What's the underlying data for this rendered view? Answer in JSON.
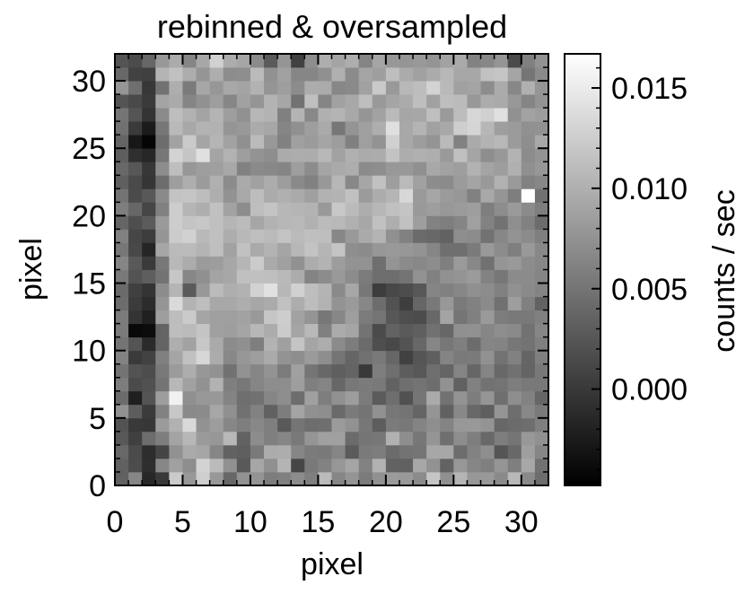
{
  "chart_data": {
    "type": "heatmap",
    "title": "rebinned & oversampled",
    "xlabel": "pixel",
    "ylabel": "pixel",
    "xlim": [
      0,
      32
    ],
    "ylim": [
      0,
      32
    ],
    "grid_size": [
      32,
      32
    ],
    "x_ticks": [
      0,
      5,
      10,
      15,
      20,
      25,
      30
    ],
    "y_ticks": [
      0,
      5,
      10,
      15,
      20,
      25,
      30
    ],
    "x_tick_labels": [
      "0",
      "5",
      "10",
      "15",
      "20",
      "25",
      "30"
    ],
    "y_tick_labels": [
      "0",
      "5",
      "10",
      "15",
      "20",
      "25",
      "30"
    ],
    "grid": false,
    "colormap": "grayscale",
    "colorbar": {
      "label": "counts / sec",
      "placement": "right",
      "range": [
        -0.0048,
        0.0167
      ],
      "ticks": [
        0.0,
        0.005,
        0.01,
        0.015
      ],
      "tick_labels": [
        "0.000",
        "0.005",
        "0.010",
        "0.015"
      ],
      "low_color": "#000000",
      "high_color": "#ffffff"
    },
    "values": [
      [
        0.0034,
        0.0065,
        -0.0015,
        0.0,
        0.0123,
        0.008,
        0.0126,
        0.008,
        0.0039,
        0.0075,
        0.0077,
        0.0057,
        0.006,
        0.007,
        0.0059,
        0.0109,
        0.0065,
        0.0077,
        0.0056,
        0.0074,
        0.0083,
        0.0081,
        0.0069,
        0.0118,
        0.0073,
        0.0105,
        0.0079,
        0.0081,
        0.0068,
        0.0107,
        0.0068,
        0.0044
      ],
      [
        0.0034,
        0.0016,
        -0.0009,
        0.0066,
        0.0087,
        0.0071,
        0.013,
        0.011,
        0.0074,
        0.0027,
        0.0092,
        0.0073,
        0.0104,
        0.0011,
        0.0054,
        0.0062,
        0.0079,
        0.0091,
        0.0062,
        0.0102,
        0.0035,
        0.0033,
        0.0093,
        0.0075,
        0.0035,
        0.0079,
        0.0065,
        0.0059,
        0.0078,
        0.0059,
        0.0094,
        0.0047
      ],
      [
        0.004,
        0.0015,
        -0.001,
        0.001,
        0.0074,
        0.0095,
        0.0092,
        0.0065,
        0.0035,
        0.0032,
        0.0055,
        0.0097,
        0.0098,
        0.0065,
        0.0056,
        0.0054,
        0.0064,
        0.0029,
        0.0055,
        0.0057,
        0.0042,
        0.0049,
        0.0051,
        0.0093,
        0.0093,
        0.0044,
        0.0062,
        0.0072,
        0.0024,
        0.004,
        0.0086,
        0.0065
      ],
      [
        0.0026,
        0.0006,
        0.0044,
        0.0058,
        0.009,
        0.0106,
        0.0082,
        0.0079,
        0.0107,
        0.0035,
        0.0071,
        0.0059,
        0.0065,
        0.0054,
        0.0078,
        0.0087,
        0.0087,
        0.0042,
        0.0051,
        0.0052,
        0.0101,
        0.0072,
        0.0052,
        0.0078,
        0.0046,
        0.0071,
        0.0058,
        0.004,
        0.0058,
        0.0051,
        0.008,
        0.0074
      ],
      [
        0.0022,
        0.0,
        -0.0002,
        0.0083,
        0.0101,
        0.0135,
        0.0075,
        0.0084,
        0.0066,
        0.0058,
        0.0067,
        0.0059,
        0.0027,
        0.0051,
        0.0044,
        0.0046,
        0.0083,
        0.0075,
        0.0052,
        0.003,
        0.0056,
        0.0053,
        0.0063,
        0.0072,
        0.0063,
        0.008,
        0.0081,
        0.0077,
        0.0039,
        0.0042,
        0.0045,
        0.0059
      ],
      [
        0.0074,
        0.003,
        0.0002,
        0.0062,
        0.012,
        0.0068,
        0.0069,
        0.0093,
        0.0073,
        0.0047,
        0.0062,
        0.0034,
        0.0057,
        0.009,
        0.0073,
        0.0072,
        0.0041,
        0.0056,
        0.005,
        0.0074,
        0.0052,
        0.005,
        0.0037,
        0.0078,
        0.0034,
        0.0067,
        0.004,
        0.0032,
        0.0078,
        0.0045,
        0.0067,
        0.0055
      ],
      [
        0.0042,
        -0.0022,
        0.0023,
        0.0085,
        0.0155,
        0.0073,
        0.008,
        0.008,
        0.0063,
        0.0046,
        0.0047,
        0.0065,
        0.0071,
        0.0044,
        0.0087,
        0.0058,
        0.0074,
        0.0084,
        0.0056,
        0.0029,
        0.0045,
        0.002,
        0.0051,
        0.0095,
        0.0048,
        0.0076,
        0.0057,
        0.0078,
        0.0046,
        0.0072,
        0.0062,
        0.0038
      ],
      [
        0.0057,
        0.0015,
        0.002,
        0.005,
        0.0107,
        0.0088,
        0.0075,
        0.0102,
        0.0059,
        0.0053,
        0.0064,
        0.0071,
        0.0071,
        0.0085,
        0.0059,
        0.0064,
        0.0039,
        0.0053,
        0.0056,
        0.0054,
        0.0035,
        0.0046,
        0.0049,
        0.0044,
        0.0075,
        0.0034,
        0.0061,
        0.0048,
        0.005,
        0.0058,
        0.0054,
        0.0053
      ],
      [
        0.0049,
        0.0022,
        0.0017,
        0.0054,
        0.0083,
        0.0098,
        0.0079,
        0.0075,
        0.0048,
        0.0075,
        0.0065,
        0.0076,
        0.0056,
        0.0087,
        0.0051,
        0.004,
        0.0032,
        0.0036,
        0.0,
        0.0058,
        0.0046,
        0.003,
        0.0025,
        0.0046,
        0.0037,
        0.0063,
        0.0038,
        0.0064,
        0.004,
        0.0047,
        0.0036,
        0.0053
      ],
      [
        0.0062,
        0.0001,
        0.0008,
        0.006,
        0.0091,
        0.0115,
        0.0133,
        0.0097,
        0.0067,
        0.0079,
        0.0085,
        0.0095,
        0.0076,
        0.0072,
        0.0083,
        0.0072,
        0.0051,
        0.0037,
        0.0047,
        0.0054,
        0.0038,
        0.0007,
        0.0024,
        0.0032,
        0.0063,
        0.0055,
        0.0056,
        0.0074,
        0.0048,
        0.0061,
        0.0037,
        0.0059
      ],
      [
        0.005,
        0.0023,
        -0.0012,
        0.0036,
        0.0099,
        0.0089,
        0.012,
        0.0095,
        0.007,
        0.0073,
        0.0058,
        0.0103,
        0.0087,
        0.0117,
        0.0091,
        0.0098,
        0.0069,
        0.0057,
        0.0042,
        0.0018,
        0.0013,
        0.0022,
        0.0039,
        0.0065,
        0.0052,
        0.0059,
        0.0043,
        0.0064,
        0.0063,
        0.0052,
        0.0049,
        0.0059
      ],
      [
        0.0056,
        -0.004,
        -0.0038,
        0.0036,
        0.0112,
        0.0109,
        0.0117,
        0.0087,
        0.0085,
        0.0091,
        0.0106,
        0.0097,
        0.0123,
        0.0091,
        0.0108,
        0.006,
        0.0096,
        0.0091,
        0.0049,
        0.0015,
        0.0035,
        0.0028,
        0.0032,
        0.0047,
        0.0039,
        0.0073,
        0.0074,
        0.0065,
        0.0072,
        0.0068,
        0.0048,
        0.0065
      ],
      [
        0.0056,
        -0.0004,
        -0.0021,
        0.0085,
        0.0111,
        0.0122,
        0.0091,
        0.0087,
        0.0086,
        0.0089,
        0.0081,
        0.0119,
        0.0125,
        0.0089,
        0.0077,
        0.0052,
        0.0066,
        0.0085,
        0.0056,
        0.0051,
        0.0025,
        0.0018,
        0.0016,
        0.004,
        0.009,
        0.0051,
        0.006,
        0.0082,
        0.0057,
        0.0054,
        0.0054,
        0.006
      ],
      [
        0.0043,
        0.0003,
        -0.0011,
        0.0078,
        0.0136,
        0.0103,
        0.0112,
        0.0094,
        0.0094,
        0.0099,
        0.0093,
        0.0096,
        0.0115,
        0.0098,
        0.0111,
        0.0102,
        0.0076,
        0.0082,
        0.0066,
        0.0044,
        0.0021,
        0.0004,
        0.0038,
        0.0054,
        0.008,
        0.0055,
        0.0061,
        0.0069,
        0.0047,
        0.0085,
        0.006,
        0.0035
      ],
      [
        0.0041,
        0.0006,
        -0.0004,
        0.0071,
        0.0105,
        0.0028,
        0.008,
        0.011,
        0.0099,
        0.0102,
        0.0129,
        0.0142,
        0.0106,
        0.0128,
        0.0112,
        0.0104,
        0.0068,
        0.0093,
        0.0052,
        0.0003,
        0.0013,
        0.0017,
        0.0025,
        0.0064,
        0.0061,
        0.0066,
        0.0073,
        0.007,
        0.0061,
        0.0074,
        0.0068,
        0.0063
      ],
      [
        0.0054,
        0.0022,
        0.0031,
        0.0049,
        0.012,
        0.0066,
        0.0073,
        0.009,
        0.0093,
        0.0114,
        0.0114,
        0.0113,
        0.0108,
        0.0097,
        0.0063,
        0.007,
        0.0081,
        0.007,
        0.0056,
        0.0045,
        0.0045,
        0.005,
        0.0075,
        0.0061,
        0.0074,
        0.0077,
        0.0083,
        0.0062,
        0.0052,
        0.0069,
        0.0069,
        0.0064
      ],
      [
        0.0064,
        0.0027,
        0.0001,
        0.0053,
        0.0107,
        0.0097,
        0.0083,
        0.0084,
        0.0093,
        0.0105,
        0.0123,
        0.0095,
        0.0087,
        0.0074,
        0.0097,
        0.0103,
        0.0084,
        0.0076,
        0.0075,
        0.0046,
        0.0077,
        0.0069,
        0.0067,
        0.0071,
        0.0059,
        0.0082,
        0.0067,
        0.0047,
        0.0078,
        0.0081,
        0.007,
        0.0066
      ],
      [
        0.0052,
        0.0013,
        -0.0017,
        0.0092,
        0.0109,
        0.011,
        0.0104,
        0.0113,
        0.0089,
        0.0115,
        0.0095,
        0.0103,
        0.0091,
        0.0106,
        0.0116,
        0.0105,
        0.0117,
        0.0072,
        0.0069,
        0.0079,
        0.0081,
        0.0079,
        0.0076,
        0.0065,
        0.0046,
        0.0046,
        0.0056,
        0.0081,
        0.007,
        0.0059,
        0.0081,
        0.0067
      ],
      [
        0.0061,
        0.0011,
        0.0003,
        0.0078,
        0.0124,
        0.0128,
        0.0108,
        0.0114,
        0.0098,
        0.0107,
        0.0113,
        0.0109,
        0.0116,
        0.0109,
        0.0113,
        0.0112,
        0.0066,
        0.0081,
        0.0095,
        0.0104,
        0.0073,
        0.0061,
        0.0042,
        0.004,
        0.0035,
        0.0072,
        0.007,
        0.0048,
        0.0066,
        0.0076,
        0.0069,
        0.0059
      ],
      [
        0.0037,
        0.0018,
        0.0029,
        0.0082,
        0.0125,
        0.0117,
        0.012,
        0.0114,
        0.0105,
        0.011,
        0.0092,
        0.0102,
        0.0106,
        0.0108,
        0.0101,
        0.011,
        0.0108,
        0.01,
        0.0093,
        0.0115,
        0.0099,
        0.0115,
        0.0085,
        0.0062,
        0.0058,
        0.0064,
        0.0087,
        0.0062,
        0.0048,
        0.0072,
        0.0061,
        0.0043
      ],
      [
        0.0058,
        0.0039,
        0.001,
        0.0061,
        0.0125,
        0.0105,
        0.0099,
        0.0115,
        0.0089,
        0.0071,
        0.0112,
        0.0117,
        0.0106,
        0.0105,
        0.0103,
        0.0081,
        0.0121,
        0.011,
        0.0098,
        0.0106,
        0.0114,
        0.0117,
        0.0081,
        0.0085,
        0.008,
        0.0083,
        0.0085,
        0.0058,
        0.0071,
        0.0082,
        0.0069,
        0.0058
      ],
      [
        0.0049,
        0.0015,
        0.0026,
        0.0068,
        0.0116,
        0.0118,
        0.0111,
        0.0099,
        0.0075,
        0.0094,
        0.0111,
        0.0096,
        0.01,
        0.0095,
        0.0087,
        0.0102,
        0.0103,
        0.0115,
        0.0083,
        0.0097,
        0.0105,
        0.0134,
        0.0082,
        0.0092,
        0.0083,
        0.0079,
        0.0061,
        0.0094,
        0.0078,
        0.0058,
        0.0167,
        0.0047
      ],
      [
        0.0032,
        0.0014,
        -0.0003,
        0.0044,
        0.0085,
        0.0099,
        0.0083,
        0.01,
        0.007,
        0.0095,
        0.0088,
        0.0097,
        0.0084,
        0.0068,
        0.0061,
        0.008,
        0.0106,
        0.0067,
        0.0092,
        0.0115,
        0.0085,
        0.0109,
        0.0088,
        0.0071,
        0.0069,
        0.0083,
        0.009,
        0.0081,
        0.0101,
        0.0082,
        0.0061,
        0.0066
      ],
      [
        0.004,
        0.0025,
        -0.0002,
        0.0071,
        0.0112,
        0.0079,
        0.0085,
        0.0086,
        0.0094,
        0.0061,
        0.0068,
        0.0067,
        0.0064,
        0.0085,
        0.007,
        0.0091,
        0.0095,
        0.0098,
        0.0069,
        0.0072,
        0.008,
        0.008,
        0.0073,
        0.0094,
        0.0089,
        0.0085,
        0.0102,
        0.009,
        0.0084,
        0.01,
        0.0073,
        0.0079
      ],
      [
        0.0031,
        -0.0008,
        -0.0015,
        0.0052,
        0.013,
        0.0118,
        0.0141,
        0.009,
        0.0102,
        0.0085,
        0.0076,
        0.0072,
        0.0096,
        0.0098,
        0.0097,
        0.0107,
        0.0089,
        0.01,
        0.0096,
        0.0097,
        0.0116,
        0.0098,
        0.01,
        0.0099,
        0.0082,
        0.0114,
        0.0091,
        0.0072,
        0.008,
        0.0103,
        0.007,
        0.0077
      ],
      [
        0.0036,
        -0.0029,
        -0.0044,
        0.0044,
        0.0089,
        0.0122,
        0.0091,
        0.0105,
        0.0089,
        0.0073,
        0.011,
        0.008,
        0.0061,
        0.0086,
        0.0083,
        0.0091,
        0.0084,
        0.006,
        0.0086,
        0.0076,
        0.0127,
        0.0094,
        0.0084,
        0.0077,
        0.0109,
        0.0061,
        0.0095,
        0.0103,
        0.0107,
        0.0083,
        0.0072,
        0.0094
      ],
      [
        0.0047,
        0.0001,
        -0.0025,
        0.0052,
        0.0108,
        0.0094,
        0.0103,
        0.0102,
        0.0078,
        0.0081,
        0.0096,
        0.0093,
        0.0064,
        0.0073,
        0.0085,
        0.0095,
        0.0052,
        0.0077,
        0.0087,
        0.0099,
        0.014,
        0.0094,
        0.0104,
        0.0088,
        0.0094,
        0.0126,
        0.0132,
        0.0106,
        0.0085,
        0.0083,
        0.0073,
        0.0075
      ],
      [
        0.0051,
        0.0024,
        -0.0004,
        0.0069,
        0.0112,
        0.0102,
        0.009,
        0.0104,
        0.0085,
        0.0074,
        0.0106,
        0.0103,
        0.006,
        0.0104,
        0.0067,
        0.01,
        0.0104,
        0.0094,
        0.0078,
        0.0089,
        0.0109,
        0.0092,
        0.0093,
        0.0113,
        0.0082,
        0.0111,
        0.0133,
        0.0127,
        0.0141,
        0.0074,
        0.0089,
        0.0084
      ],
      [
        0.0023,
        0.0014,
        0.0001,
        0.009,
        0.0095,
        0.0064,
        0.0074,
        0.0085,
        0.0065,
        0.0088,
        0.0078,
        0.0103,
        0.0092,
        0.0048,
        0.0113,
        0.0064,
        0.0088,
        0.0094,
        0.0112,
        0.0081,
        0.0091,
        0.0096,
        0.0112,
        0.0088,
        0.0112,
        0.011,
        0.008,
        0.0097,
        0.0095,
        0.008,
        0.0064,
        0.0076
      ],
      [
        0.0078,
        0.0046,
        -0.0002,
        0.0048,
        0.0099,
        0.0056,
        0.0093,
        0.0079,
        0.0094,
        0.009,
        0.0102,
        0.0078,
        0.0085,
        0.007,
        0.0097,
        0.0096,
        0.0066,
        0.0068,
        0.0088,
        0.0122,
        0.0081,
        0.0107,
        0.0111,
        0.013,
        0.0108,
        0.0088,
        0.009,
        0.0071,
        0.0096,
        0.0066,
        0.01,
        0.0078
      ],
      [
        0.004,
        0.0008,
        0.0006,
        0.0104,
        0.0115,
        0.0098,
        0.0078,
        0.0099,
        0.0071,
        0.0072,
        0.011,
        0.0074,
        0.0088,
        0.0065,
        0.0065,
        0.0073,
        0.01,
        0.0069,
        0.0091,
        0.0086,
        0.0112,
        0.0096,
        0.0088,
        0.0096,
        0.0107,
        0.0093,
        0.0093,
        0.0115,
        0.0118,
        0.0091,
        0.0051,
        0.0068
      ],
      [
        0.0023,
        0.0016,
        0.0039,
        0.008,
        0.0096,
        0.0064,
        0.0093,
        0.0128,
        0.0097,
        0.0092,
        0.0069,
        0.0028,
        0.0078,
        0.0007,
        0.0072,
        0.0099,
        0.009,
        0.0099,
        0.0063,
        0.0091,
        0.0079,
        0.0078,
        0.0081,
        0.0077,
        0.0089,
        0.0095,
        0.0062,
        0.0066,
        0.0078,
        0.0014,
        0.006,
        0.0075
      ]
    ]
  }
}
